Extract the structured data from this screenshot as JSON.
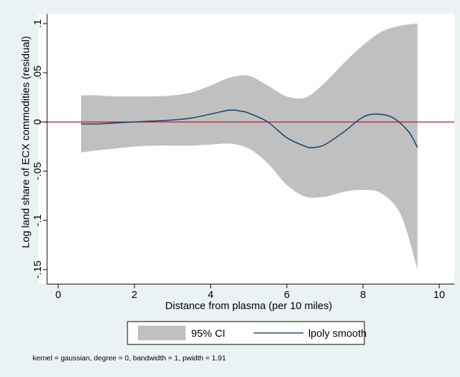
{
  "chart_data": {
    "type": "area",
    "xlabel": "Distance from plasma (per 10 miles)",
    "ylabel": "Log land share of ECX commodities (residual)",
    "xlim": [
      0,
      10
    ],
    "ylim": [
      -0.15,
      0.1
    ],
    "xticks": [
      0,
      2,
      4,
      6,
      8,
      10
    ],
    "xtick_labels": [
      "0",
      "2",
      "4",
      "6",
      "8",
      "10"
    ],
    "yticks": [
      -0.15,
      -0.1,
      -0.05,
      0,
      0.05,
      0.1
    ],
    "ytick_labels": [
      "-.15",
      "-.1",
      "-.05",
      "0",
      ".05",
      ".1"
    ],
    "grid": false,
    "legend_position": "bottom",
    "reference_line": {
      "y": 0,
      "color": "#b2182b"
    },
    "series": [
      {
        "name": "95% CI",
        "kind": "band",
        "color": "#c0c0c0",
        "x": [
          0.6,
          1.0,
          1.5,
          2.0,
          2.5,
          3.0,
          3.5,
          4.0,
          4.5,
          5.0,
          5.5,
          6.0,
          6.5,
          7.0,
          7.5,
          8.0,
          8.5,
          9.0,
          9.43
        ],
        "upper": [
          0.027,
          0.027,
          0.026,
          0.026,
          0.026,
          0.027,
          0.03,
          0.037,
          0.045,
          0.047,
          0.037,
          0.026,
          0.025,
          0.04,
          0.06,
          0.078,
          0.092,
          0.098,
          0.1
        ],
        "lower": [
          -0.031,
          -0.029,
          -0.027,
          -0.025,
          -0.024,
          -0.024,
          -0.024,
          -0.023,
          -0.022,
          -0.027,
          -0.042,
          -0.064,
          -0.076,
          -0.076,
          -0.071,
          -0.069,
          -0.073,
          -0.095,
          -0.15
        ]
      },
      {
        "name": "lpoly smooth",
        "kind": "line",
        "color": "#1a476f",
        "x": [
          0.6,
          1.0,
          1.5,
          2.0,
          2.5,
          3.0,
          3.5,
          4.0,
          4.5,
          4.8,
          5.0,
          5.5,
          6.0,
          6.5,
          6.7,
          7.0,
          7.5,
          8.0,
          8.4,
          8.8,
          9.2,
          9.43
        ],
        "y": [
          -0.002,
          -0.002,
          -0.001,
          0.0,
          0.001,
          0.002,
          0.004,
          0.008,
          0.012,
          0.011,
          0.009,
          0.0,
          -0.016,
          -0.025,
          -0.026,
          -0.023,
          -0.01,
          0.005,
          0.008,
          0.004,
          -0.01,
          -0.026
        ]
      }
    ],
    "note": "kernel = gaussian, degree = 0, bandwidth = 1, pwidth = 1.91"
  }
}
